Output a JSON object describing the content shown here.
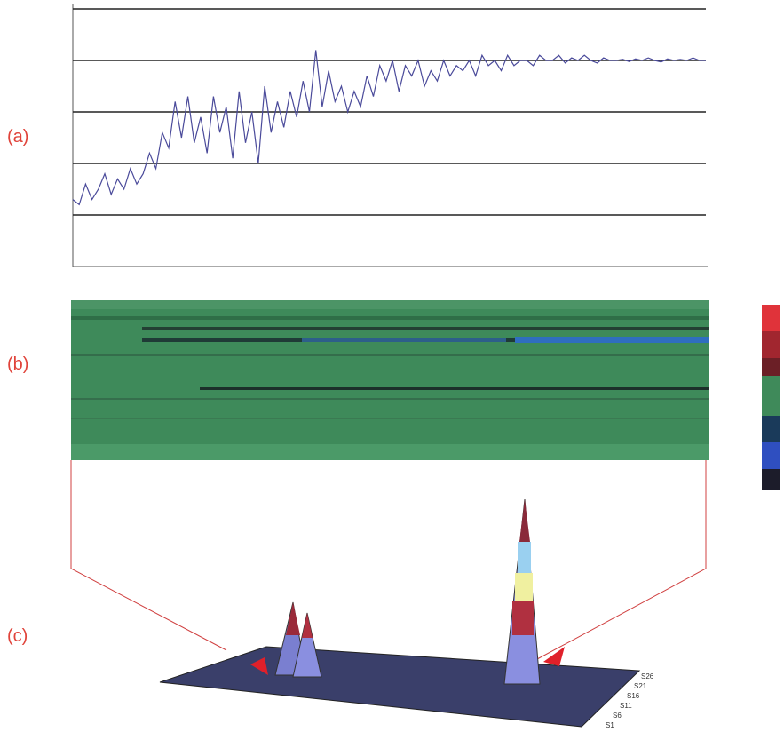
{
  "panels": [
    "(a)",
    "(b)",
    "(c)"
  ],
  "chart_data": {
    "type": "line",
    "color": "#4a4a9a",
    "values": [
      1.3,
      1.2,
      1.6,
      1.3,
      1.5,
      1.8,
      1.4,
      1.7,
      1.5,
      1.9,
      1.6,
      1.8,
      2.2,
      1.9,
      2.6,
      2.3,
      3.2,
      2.5,
      3.3,
      2.4,
      2.9,
      2.2,
      3.3,
      2.6,
      3.1,
      2.1,
      3.4,
      2.4,
      3.0,
      2.0,
      3.5,
      2.6,
      3.2,
      2.7,
      3.4,
      2.9,
      3.6,
      3.0,
      4.2,
      3.1,
      3.8,
      3.2,
      3.5,
      3.0,
      3.4,
      3.1,
      3.7,
      3.3,
      3.9,
      3.6,
      4.0,
      3.4,
      3.9,
      3.7,
      4.0,
      3.5,
      3.8,
      3.6,
      4.0,
      3.7,
      3.9,
      3.8,
      4.0,
      3.7,
      4.1,
      3.9,
      4.0,
      3.8,
      4.1,
      3.9,
      4.0,
      4.0,
      3.9,
      4.1,
      4.0,
      4.0,
      4.1,
      3.95,
      4.05,
      4.0,
      4.1,
      4.0,
      3.95,
      4.05,
      4.0,
      4.0,
      4.02,
      3.98,
      4.03,
      4.0,
      4.05,
      4.0,
      3.97,
      4.03,
      4.0,
      4.02,
      4.0,
      4.05,
      4.0,
      4.0
    ],
    "ylim": [
      0,
      5
    ],
    "yticks": [
      1,
      2,
      3,
      4,
      5
    ],
    "grid": true
  },
  "surface_labels": [
    "S26",
    "S21",
    "S16",
    "S11",
    "S6",
    "S1"
  ]
}
